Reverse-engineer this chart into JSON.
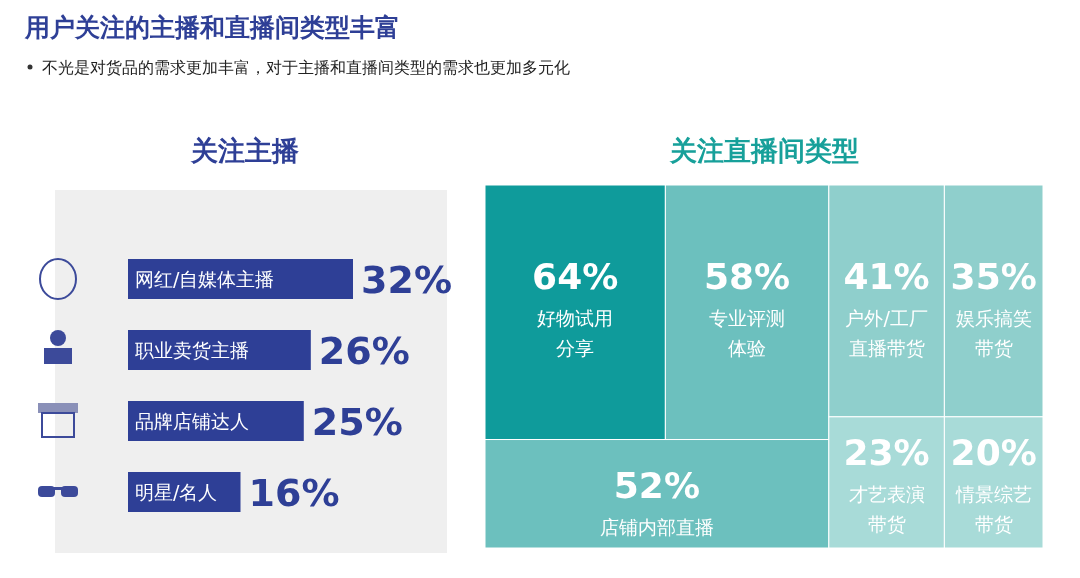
{
  "chart_data": [
    {
      "type": "bar",
      "orientation": "horizontal",
      "title": "关注主播",
      "annotations": [
        "用户关注的主播和直播间类型丰富",
        "不光是对货品的需求更加丰富，对于主播和直播间类型的需求也更加多元化"
      ],
      "categories": [
        "网红/自媒体主播",
        "职业卖货主播",
        "品牌店铺达人",
        "明星/名人"
      ],
      "values": [
        32,
        26,
        25,
        16
      ],
      "value_labels": [
        "32%",
        "26%",
        "25%",
        "16%"
      ],
      "color": "#2e3f96"
    },
    {
      "type": "other",
      "title": "关注直播间类型",
      "categories": [
        "好物试用分享",
        "专业评测体验",
        "户外/工厂直播带货",
        "娱乐搞笑带货",
        "店铺内部直播",
        "才艺表演带货",
        "情景综艺带货"
      ],
      "values": [
        64,
        58,
        41,
        35,
        52,
        23,
        20
      ],
      "value_labels": [
        "64%",
        "58%",
        "41%",
        "35%",
        "52%",
        "23%",
        "20%"
      ],
      "colors": [
        "#0f9b9b",
        "#6cc0be",
        "#8fcfcc",
        "#8fcfcc",
        "#6cc0be",
        "#a8dbd8",
        "#a8dbd8"
      ]
    }
  ]
}
